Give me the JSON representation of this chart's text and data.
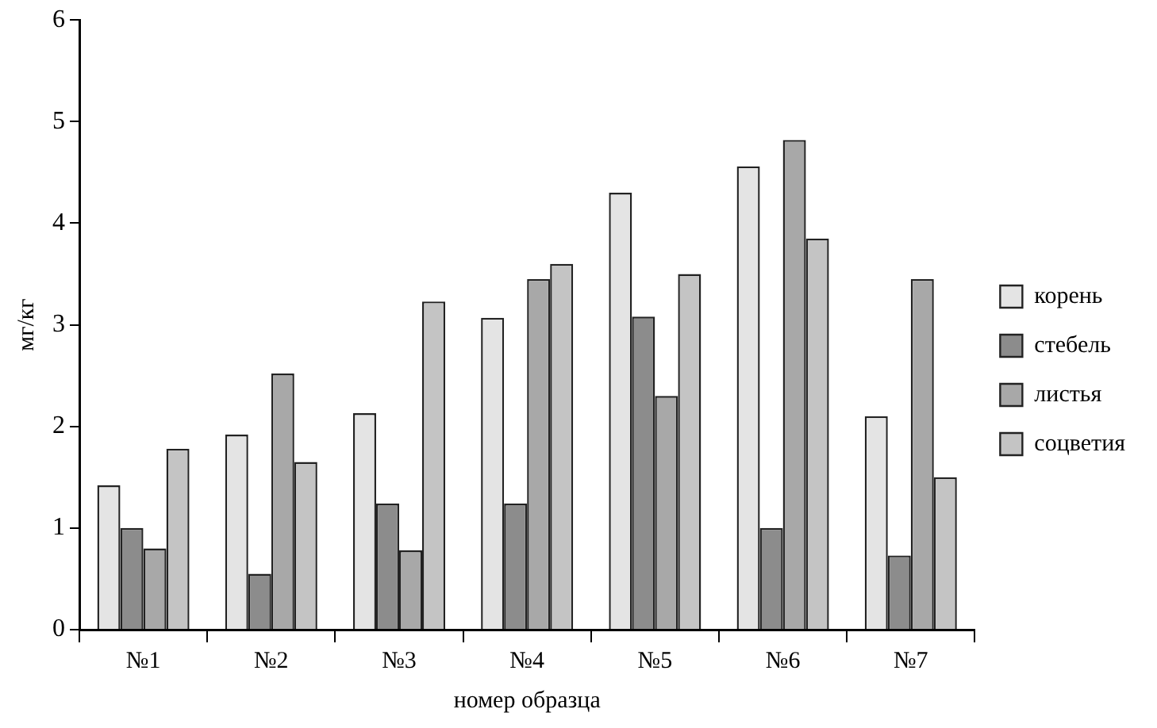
{
  "chart_data": {
    "type": "bar",
    "xlabel": "номер образца",
    "ylabel": "мг/кг",
    "categories": [
      "№1",
      "№2",
      "№3",
      "№4",
      "№5",
      "№6",
      "№7"
    ],
    "series": [
      {
        "name": "корень",
        "color": "#e4e4e4",
        "values": [
          1.42,
          1.92,
          2.13,
          3.07,
          4.3,
          4.56,
          2.1
        ]
      },
      {
        "name": "стебель",
        "color": "#8c8c8c",
        "values": [
          1.0,
          0.55,
          1.24,
          1.24,
          3.08,
          1.0,
          0.73
        ]
      },
      {
        "name": "листья",
        "color": "#a8a8a8",
        "values": [
          0.8,
          2.52,
          0.78,
          3.45,
          2.3,
          4.82,
          3.45
        ]
      },
      {
        "name": "соцветия",
        "color": "#c4c4c4",
        "values": [
          1.78,
          1.65,
          3.23,
          3.6,
          3.5,
          3.85,
          1.5
        ]
      }
    ],
    "ylim": [
      0,
      6
    ],
    "yticks": [
      0,
      1,
      2,
      3,
      4,
      5,
      6
    ],
    "grid": false,
    "legend": "right"
  }
}
